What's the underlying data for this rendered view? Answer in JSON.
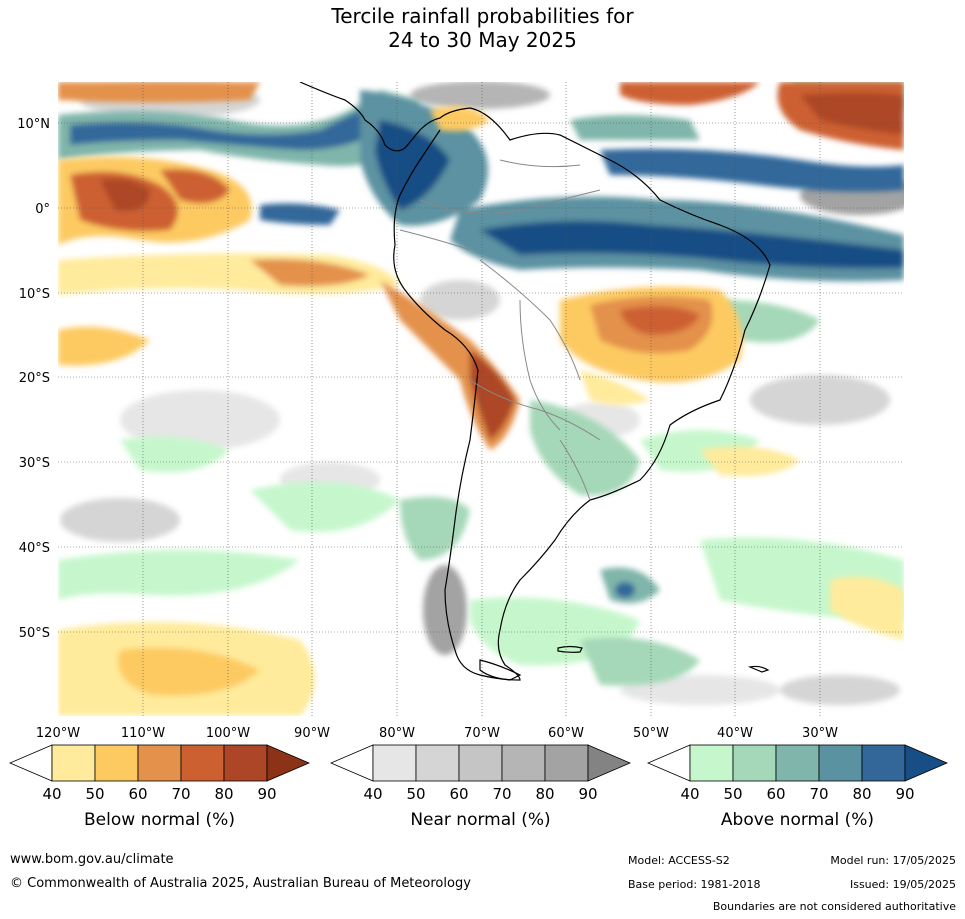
{
  "title": {
    "line1": "Tercile rainfall probabilities for",
    "line2": "24 to 30 May 2025"
  },
  "map": {
    "latitude_labels": [
      "10°N",
      "0°",
      "10°S",
      "20°S",
      "30°S",
      "40°S",
      "50°S"
    ],
    "longitude_labels": [
      "120°W",
      "110°W",
      "100°W",
      "90°W",
      "80°W",
      "70°W",
      "60°W",
      "50°W",
      "40°W",
      "30°W"
    ],
    "colors": {
      "ocean_neutral": "#ffffff",
      "land_border": "#000000",
      "country_border": "#888888",
      "grid": "#555555"
    }
  },
  "legends": [
    {
      "title": "Below normal (%)",
      "ticks": [
        "40",
        "50",
        "60",
        "70",
        "80",
        "90"
      ],
      "colors": [
        "#ffeb9b",
        "#fdca62",
        "#e3914b",
        "#cd6030",
        "#ad4626",
        "#8c3317"
      ]
    },
    {
      "title": "Near normal (%)",
      "ticks": [
        "40",
        "50",
        "60",
        "70",
        "80",
        "90"
      ],
      "colors": [
        "#e6e6e6",
        "#d5d5d5",
        "#c5c5c5",
        "#b5b5b5",
        "#a3a3a3",
        "#838383"
      ]
    },
    {
      "title": "Above normal (%)",
      "ticks": [
        "40",
        "50",
        "60",
        "70",
        "80",
        "90"
      ],
      "colors": [
        "#c6f7cc",
        "#a5d8b8",
        "#7fb5aa",
        "#5b92a1",
        "#33679a",
        "#164e85"
      ]
    }
  ],
  "footer": {
    "website": "www.bom.gov.au/climate",
    "copyright": "© Commonwealth of Australia 2025, Australian Bureau of Meteorology",
    "model": "Model: ACCESS-S2",
    "base_period": "Base period: 1981-2018",
    "model_run": "Model run: 17/05/2025",
    "issued": "Issued: 19/05/2025",
    "disclaimer": "Boundaries are not considered authoritative"
  }
}
